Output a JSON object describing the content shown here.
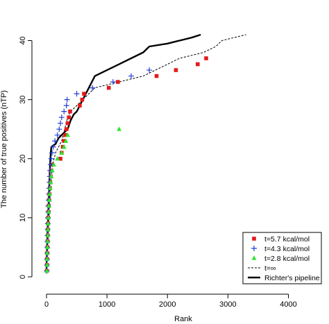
{
  "chart_data": {
    "type": "scatter",
    "title": "",
    "xlabel": "Rank",
    "ylabel": "The number of true positives (nTP)",
    "xlim": [
      -200,
      4300
    ],
    "ylim": [
      -1,
      45
    ],
    "xticks": [
      0,
      1000,
      2000,
      3000,
      4000
    ],
    "yticks": [
      0,
      10,
      20,
      30,
      40
    ],
    "grid": false,
    "legend_position": "bottom-right",
    "series": [
      {
        "name": "t=5.7 kcal/mol",
        "kind": "points",
        "marker": "square",
        "color": "#e31a1c",
        "points": [
          [
            5,
            1
          ],
          [
            8,
            2
          ],
          [
            10,
            3
          ],
          [
            12,
            4
          ],
          [
            15,
            5
          ],
          [
            18,
            6
          ],
          [
            20,
            7
          ],
          [
            22,
            8
          ],
          [
            25,
            9
          ],
          [
            28,
            10
          ],
          [
            32,
            11
          ],
          [
            36,
            12
          ],
          [
            42,
            13
          ],
          [
            48,
            14
          ],
          [
            55,
            15
          ],
          [
            62,
            16
          ],
          [
            70,
            17
          ],
          [
            80,
            18
          ],
          [
            95,
            19
          ],
          [
            230,
            20
          ],
          [
            250,
            21
          ],
          [
            270,
            22
          ],
          [
            290,
            23
          ],
          [
            310,
            24
          ],
          [
            330,
            25
          ],
          [
            350,
            26
          ],
          [
            370,
            27
          ],
          [
            390,
            28
          ],
          [
            550,
            29
          ],
          [
            590,
            30
          ],
          [
            620,
            31
          ],
          [
            1030,
            32
          ],
          [
            1180,
            33
          ],
          [
            1820,
            34
          ],
          [
            2140,
            35
          ],
          [
            2500,
            36
          ],
          [
            2640,
            37
          ]
        ]
      },
      {
        "name": "t=4.3 kcal/mol",
        "kind": "points",
        "marker": "plus",
        "color": "#1f3fd6",
        "points": [
          [
            5,
            1
          ],
          [
            7,
            2
          ],
          [
            9,
            3
          ],
          [
            11,
            4
          ],
          [
            13,
            5
          ],
          [
            15,
            6
          ],
          [
            17,
            7
          ],
          [
            19,
            8
          ],
          [
            21,
            9
          ],
          [
            24,
            10
          ],
          [
            27,
            11
          ],
          [
            30,
            12
          ],
          [
            34,
            13
          ],
          [
            38,
            14
          ],
          [
            43,
            15
          ],
          [
            48,
            16
          ],
          [
            54,
            17
          ],
          [
            60,
            18
          ],
          [
            68,
            19
          ],
          [
            78,
            20
          ],
          [
            92,
            21
          ],
          [
            110,
            22
          ],
          [
            140,
            23
          ],
          [
            180,
            24
          ],
          [
            210,
            25
          ],
          [
            230,
            26
          ],
          [
            250,
            27
          ],
          [
            290,
            28
          ],
          [
            330,
            29
          ],
          [
            340,
            30
          ],
          [
            500,
            31
          ],
          [
            760,
            32
          ],
          [
            1100,
            33
          ],
          [
            1400,
            34
          ],
          [
            1700,
            35
          ]
        ]
      },
      {
        "name": "t=2.8 kcal/mol",
        "kind": "points",
        "marker": "triangle",
        "color": "#2ee62e",
        "points": [
          [
            5,
            1
          ],
          [
            8,
            2
          ],
          [
            10,
            3
          ],
          [
            12,
            4
          ],
          [
            15,
            5
          ],
          [
            18,
            6
          ],
          [
            21,
            7
          ],
          [
            24,
            8
          ],
          [
            27,
            9
          ],
          [
            31,
            10
          ],
          [
            35,
            11
          ],
          [
            40,
            12
          ],
          [
            46,
            13
          ],
          [
            53,
            14
          ],
          [
            60,
            15
          ],
          [
            70,
            16
          ],
          [
            80,
            17
          ],
          [
            95,
            18
          ],
          [
            120,
            19
          ],
          [
            180,
            20
          ],
          [
            250,
            21
          ],
          [
            290,
            22
          ],
          [
            320,
            23
          ],
          [
            350,
            24
          ],
          [
            1200,
            25
          ]
        ]
      },
      {
        "name": "t=∞",
        "kind": "line",
        "dash": true,
        "color": "#000000",
        "points": [
          [
            0,
            1
          ],
          [
            20,
            5
          ],
          [
            40,
            10
          ],
          [
            60,
            14
          ],
          [
            80,
            17
          ],
          [
            100,
            19
          ],
          [
            150,
            21
          ],
          [
            200,
            22
          ],
          [
            250,
            23
          ],
          [
            300,
            25
          ],
          [
            350,
            27
          ],
          [
            400,
            28
          ],
          [
            500,
            29
          ],
          [
            600,
            30
          ],
          [
            700,
            31
          ],
          [
            800,
            32
          ],
          [
            1000,
            32.5
          ],
          [
            1200,
            33
          ],
          [
            1400,
            33.5
          ],
          [
            1600,
            34
          ],
          [
            1800,
            35
          ],
          [
            2000,
            36
          ],
          [
            2200,
            37
          ],
          [
            2400,
            37.5
          ],
          [
            2600,
            38
          ],
          [
            2800,
            39
          ],
          [
            2900,
            40
          ],
          [
            3100,
            40.5
          ],
          [
            3300,
            41
          ]
        ]
      },
      {
        "name": "Richter's pipeline",
        "kind": "line",
        "dash": false,
        "color": "#000000",
        "points": [
          [
            0,
            1
          ],
          [
            10,
            5
          ],
          [
            20,
            8
          ],
          [
            30,
            11
          ],
          [
            40,
            14
          ],
          [
            50,
            17
          ],
          [
            60,
            19
          ],
          [
            70,
            21
          ],
          [
            80,
            22
          ],
          [
            150,
            22.5
          ],
          [
            200,
            23.5
          ],
          [
            300,
            24.5
          ],
          [
            350,
            25
          ],
          [
            400,
            26.5
          ],
          [
            450,
            27.5
          ],
          [
            500,
            28
          ],
          [
            600,
            30
          ],
          [
            700,
            32
          ],
          [
            800,
            34
          ],
          [
            1000,
            35
          ],
          [
            1200,
            36
          ],
          [
            1400,
            37
          ],
          [
            1600,
            38
          ],
          [
            1700,
            39
          ],
          [
            2000,
            39.5
          ],
          [
            2200,
            40
          ],
          [
            2400,
            40.5
          ],
          [
            2550,
            41
          ]
        ]
      }
    ]
  }
}
